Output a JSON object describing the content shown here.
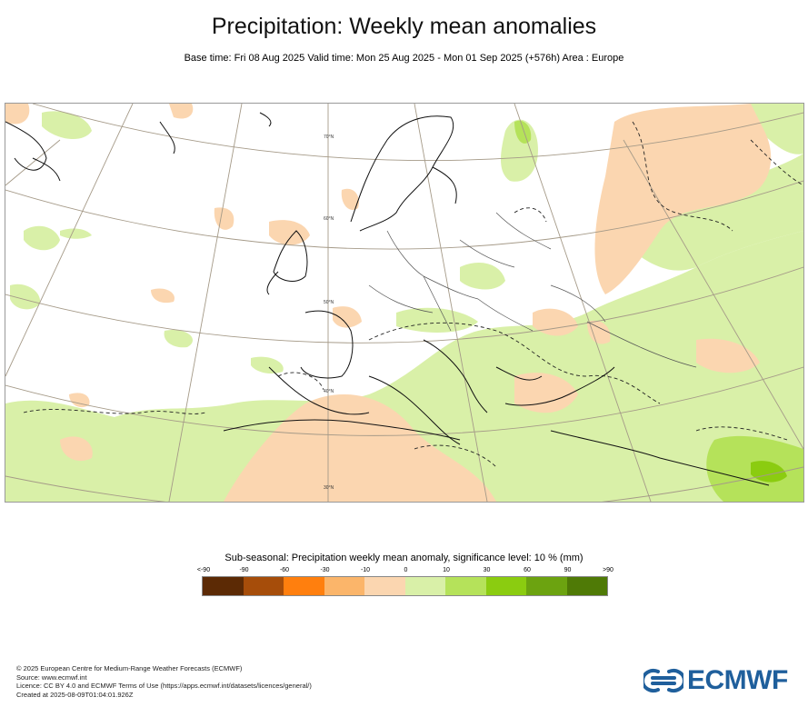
{
  "header": {
    "title": "Precipitation: Weekly mean anomalies",
    "subtitle": "Base time: Fri 08 Aug 2025 Valid time: Mon 25 Aug 2025 - Mon 01 Sep 2025 (+576h) Area : Europe"
  },
  "map": {
    "region": "Europe",
    "parallel_labels": [
      "70°N",
      "60°N",
      "50°N",
      "40°N",
      "30°N"
    ]
  },
  "legend": {
    "title": "Sub-seasonal: Precipitation weekly mean anomaly, significance level: 10 % (mm)",
    "labels": [
      "<-90",
      "-90",
      "-60",
      "-30",
      "-10",
      "0",
      "10",
      "30",
      "60",
      "90",
      ">90"
    ],
    "colors": [
      "#5c2a05",
      "#a64d0a",
      "#ff7f0e",
      "#fbb56a",
      "#fbd6b0",
      "#d9f0a8",
      "#b5e25a",
      "#8bcc10",
      "#6ca310",
      "#4f7a06"
    ]
  },
  "footer": {
    "line1": "© 2025 European Centre for Medium-Range Weather Forecasts (ECMWF)",
    "line2": "Source: www.ecmwf.int",
    "line3": "Licence: CC BY 4.0 and ECMWF Terms of Use (https://apps.ecmwf.int/datasets/licences/general/)",
    "line4": "Created at 2025-08-09T01:04:01.926Z"
  },
  "logo": {
    "text": "ECMWF",
    "color": "#1f5f9c"
  }
}
